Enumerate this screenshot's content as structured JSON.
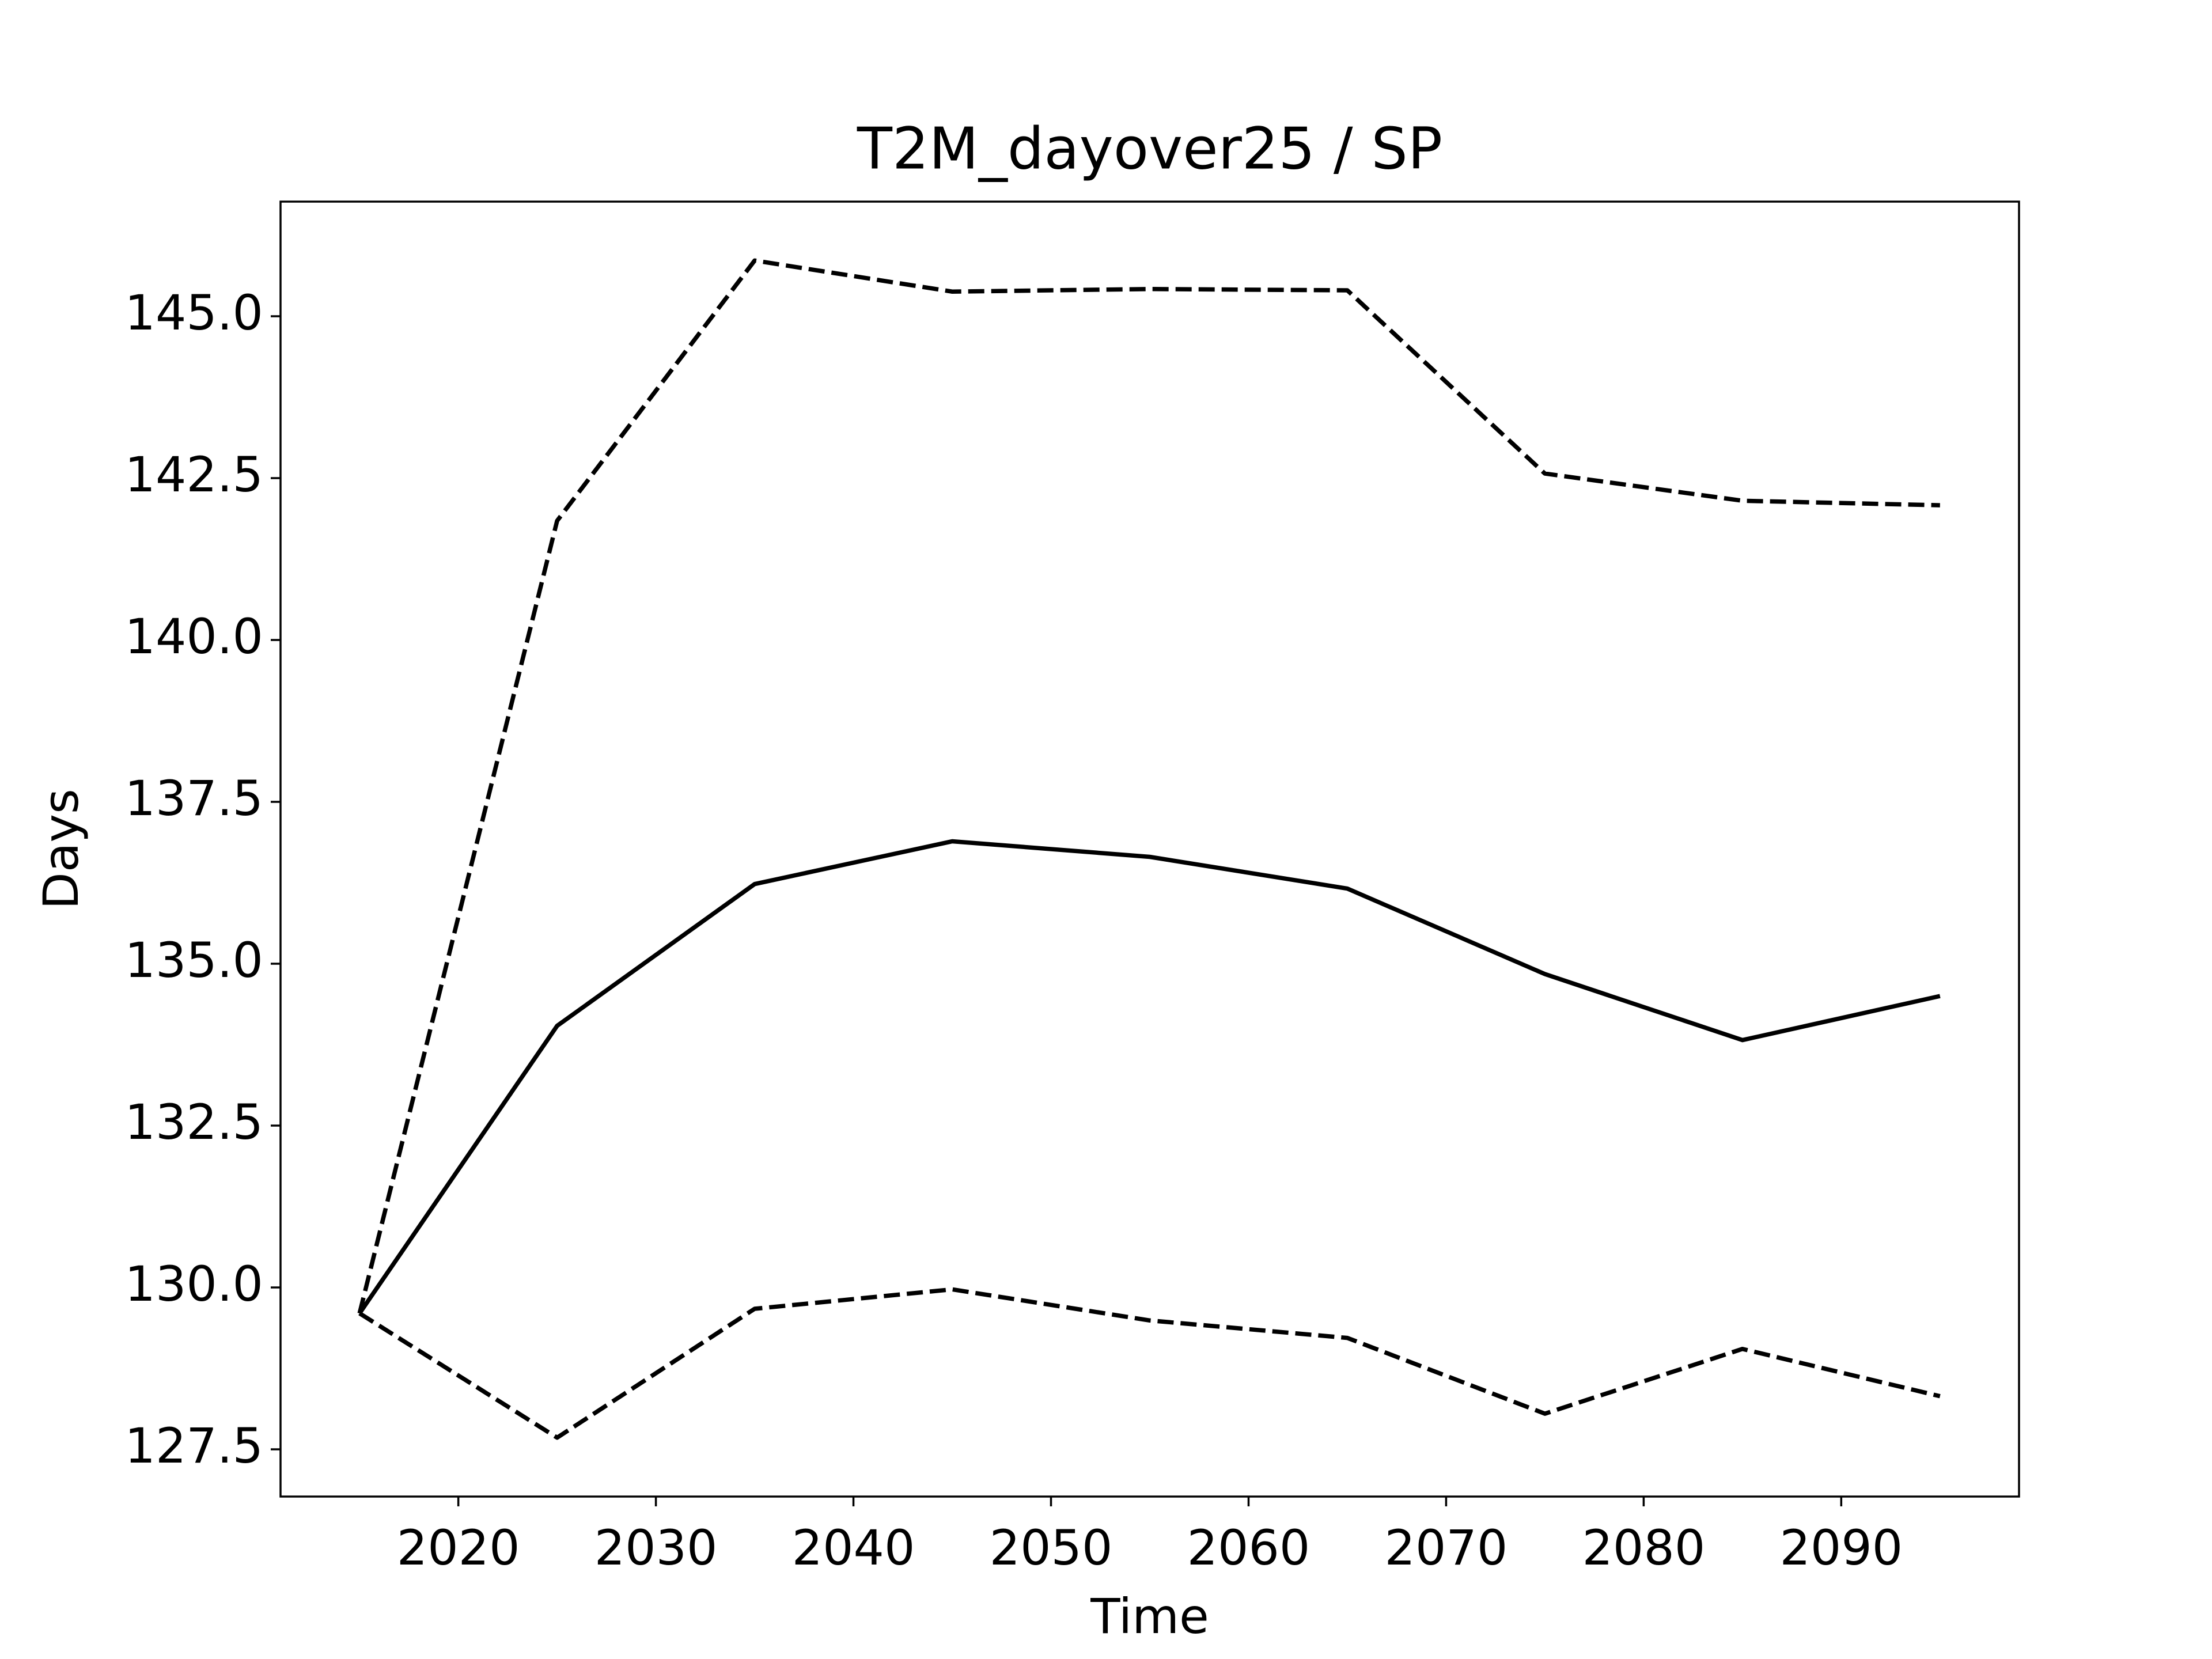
{
  "chart_data": {
    "type": "line",
    "title": "T2M_dayover25 / SP",
    "x_label": "Time",
    "y_label": "Days",
    "x": [
      2015,
      2025,
      2035,
      2045,
      2055,
      2065,
      2075,
      2085,
      2095
    ],
    "series": [
      {
        "color": "#000000",
        "linestyle": "solid",
        "values": [
          129.6,
          134.04,
          136.23,
          136.89,
          136.65,
          136.16,
          134.84,
          133.82,
          134.5
        ]
      },
      {
        "color": "#000000",
        "linestyle": "dashed",
        "values": [
          129.6,
          141.84,
          145.86,
          145.38,
          145.42,
          145.4,
          142.57,
          142.15,
          142.08
        ]
      },
      {
        "color": "#000000",
        "linestyle": "dashed",
        "values": [
          129.6,
          127.68,
          129.67,
          129.97,
          129.49,
          129.22,
          128.05,
          129.05,
          128.32
        ]
      }
    ],
    "xlim": [
      2011,
      2099
    ],
    "ylim": [
      126.77,
      146.77
    ],
    "xticks": [
      2020,
      2030,
      2040,
      2050,
      2060,
      2070,
      2080,
      2090
    ],
    "yticks": [
      {
        "value": 127.5,
        "label": "127.5"
      },
      {
        "value": 130,
        "label": "130.0"
      },
      {
        "value": 132.5,
        "label": "132.5"
      },
      {
        "value": 135,
        "label": "135.0"
      },
      {
        "value": 137.5,
        "label": "137.5"
      },
      {
        "value": 140,
        "label": "140.0"
      },
      {
        "value": 142.5,
        "label": "142.5"
      },
      {
        "value": 145,
        "label": "145.0"
      }
    ],
    "grid": false
  }
}
